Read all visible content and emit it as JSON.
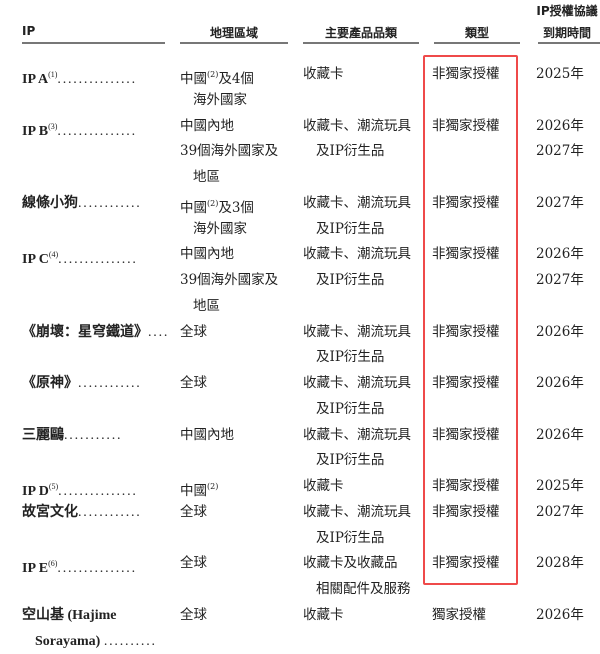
{
  "headers": {
    "ip": "IP",
    "region": "地理區域",
    "product": "主要產品品類",
    "type": "類型",
    "expiry_line1": "IP授權協議",
    "expiry_line2": "到期時間"
  },
  "highlight_color": "#ef4a4a",
  "rows": [
    {
      "name": "IP A",
      "sup": "(1)",
      "dots": "...............",
      "region": [
        {
          "text": "中國",
          "sup": "(2)",
          "after": "及4個"
        },
        {
          "text": "海外國家"
        }
      ],
      "product": [
        "收藏卡"
      ],
      "type": "非獨家授權",
      "years": [
        "2025年"
      ]
    },
    {
      "name": "IP B",
      "sup": "(3)",
      "dots": "...............",
      "region": [
        {
          "text": "中國內地"
        },
        {
          "text": "39個海外國家及"
        },
        {
          "text": "地區"
        }
      ],
      "product": [
        "收藏卡、潮流玩具",
        "及IP衍生品"
      ],
      "type": "非獨家授權",
      "years": [
        "2026年",
        "2027年"
      ]
    },
    {
      "name": "線條小狗",
      "dots": "............",
      "region": [
        {
          "text": "中國",
          "sup": "(2)",
          "after": "及3個"
        },
        {
          "text": "海外國家"
        }
      ],
      "product": [
        "收藏卡、潮流玩具",
        "及IP衍生品"
      ],
      "type": "非獨家授權",
      "years": [
        "2027年"
      ]
    },
    {
      "name": "IP C",
      "sup": "(4)",
      "dots": "...............",
      "region": [
        {
          "text": "中國內地"
        },
        {
          "text": "39個海外國家及"
        },
        {
          "text": "地區"
        }
      ],
      "product": [
        "收藏卡、潮流玩具",
        "及IP衍生品"
      ],
      "type": "非獨家授權",
      "years": [
        "2026年",
        "2027年"
      ]
    },
    {
      "name": "《崩壞：星穹鐵道》",
      "dots": "....",
      "region": [
        {
          "text": "全球"
        }
      ],
      "product": [
        "收藏卡、潮流玩具",
        "及IP衍生品"
      ],
      "type": "非獨家授權",
      "years": [
        "2026年"
      ]
    },
    {
      "name": "《原神》",
      "dots": "............",
      "region": [
        {
          "text": "全球"
        }
      ],
      "product": [
        "收藏卡、潮流玩具",
        "及IP衍生品"
      ],
      "type": "非獨家授權",
      "years": [
        "2026年"
      ]
    },
    {
      "name": "三麗鷗",
      "dots": "...........",
      "region": [
        {
          "text": "中國內地"
        }
      ],
      "product": [
        "收藏卡、潮流玩具",
        "及IP衍生品"
      ],
      "type": "非獨家授權",
      "years": [
        "2026年"
      ]
    },
    {
      "name": "IP D",
      "sup": "(5)",
      "dots": "...............",
      "region": [
        {
          "text": "中國",
          "sup": "(2)"
        }
      ],
      "product": [
        "收藏卡"
      ],
      "type": "非獨家授權",
      "years": [
        "2025年"
      ]
    },
    {
      "name": "故宮文化",
      "dots": "............",
      "region": [
        {
          "text": "全球"
        }
      ],
      "product": [
        "收藏卡、潮流玩具",
        "及IP衍生品"
      ],
      "type": "非獨家授權",
      "years": [
        "2027年"
      ]
    },
    {
      "name": "IP E",
      "sup": "(6)",
      "dots": "...............",
      "region": [
        {
          "text": "全球"
        }
      ],
      "product": [
        "收藏卡及收藏品",
        "相關配件及服務"
      ],
      "type": "非獨家授權",
      "years": [
        "2028年"
      ]
    },
    {
      "name": "空山基 (Hajime",
      "name2": "Sorayama)",
      "dots": "..........",
      "region": [
        {
          "text": "全球"
        }
      ],
      "product": [
        "收藏卡"
      ],
      "type": "獨家授權",
      "years": [
        "2026年"
      ]
    }
  ]
}
